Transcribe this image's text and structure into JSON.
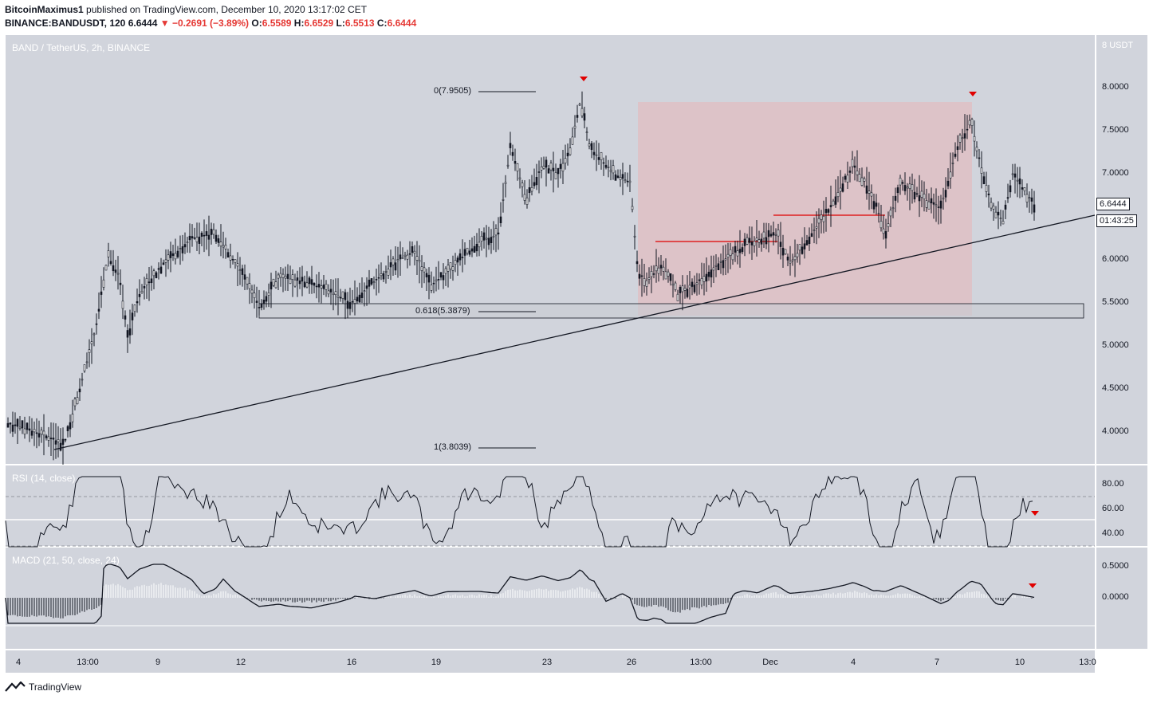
{
  "header": {
    "publisher": "BitcoinMaximus1",
    "published_text": "published on TradingView.com, December 10, 2020 13:17:02 CET",
    "symbol": "BINANCE:BANDUSDT, 120",
    "last": "6.6444",
    "change_arrow": "▼",
    "change": "−0.2691 (−3.89%)",
    "open_label": "O:",
    "open": "6.5589",
    "high_label": "H:",
    "high": "6.6529",
    "low_label": "L:",
    "low": "6.5513",
    "close_label": "C:",
    "close": "6.6444"
  },
  "main": {
    "pair_label": "BAND / TetherUS, 2h, BINANCE",
    "axis_unit": "USDT",
    "price_ticks": [
      "8.0000",
      "7.5000",
      "7.0000",
      "6.5000",
      "6.0000",
      "5.5000",
      "5.0000",
      "4.5000",
      "4.0000"
    ],
    "last_price": "6.6444",
    "countdown": "01:43:25",
    "fib_0": "0(7.9505)",
    "fib_618": "0.618(5.3879)",
    "fib_1": "1(3.8039)"
  },
  "rsi": {
    "label": "RSI (14, close)",
    "ticks": [
      "80.00",
      "60.00",
      "40.00"
    ]
  },
  "macd": {
    "label": "MACD (21, 50, close, 24)",
    "ticks": [
      "0.5000",
      "0.0000"
    ]
  },
  "x_axis": {
    "ticks": [
      "4",
      "13:00",
      "9",
      "12",
      "16",
      "19",
      "23",
      "26",
      "13:00",
      "Dec",
      "4",
      "7",
      "10",
      "13:0"
    ]
  },
  "footer": {
    "brand": "TradingView"
  },
  "colors": {
    "panel_bg": "#d1d4dc",
    "candle": "#131722",
    "marker": "#e00000",
    "box_fill": "#e8b4b8",
    "level_line": "#e00000"
  },
  "chart_data": {
    "type": "line",
    "title": "BAND / TetherUS, 2h, BINANCE",
    "ylabel": "USDT",
    "ylim": [
      3.6,
      8.5
    ],
    "x": [
      "4",
      "13:00",
      "9",
      "12",
      "16",
      "19",
      "23",
      "26",
      "13:00",
      "Dec",
      "4",
      "7",
      "10"
    ],
    "series": [
      {
        "values": [
          4.05,
          5.85,
          6.2,
          6.25,
          5.6,
          5.55,
          6.2,
          7.8,
          5.7,
          6.15,
          7.15,
          7.55,
          6.64
        ]
      }
    ],
    "annotations": [
      {
        "text": "0(7.9505)",
        "value": 7.9505
      },
      {
        "text": "0.618(5.3879)",
        "value": 5.3879
      },
      {
        "text": "1(3.8039)",
        "value": 3.8039
      }
    ]
  }
}
